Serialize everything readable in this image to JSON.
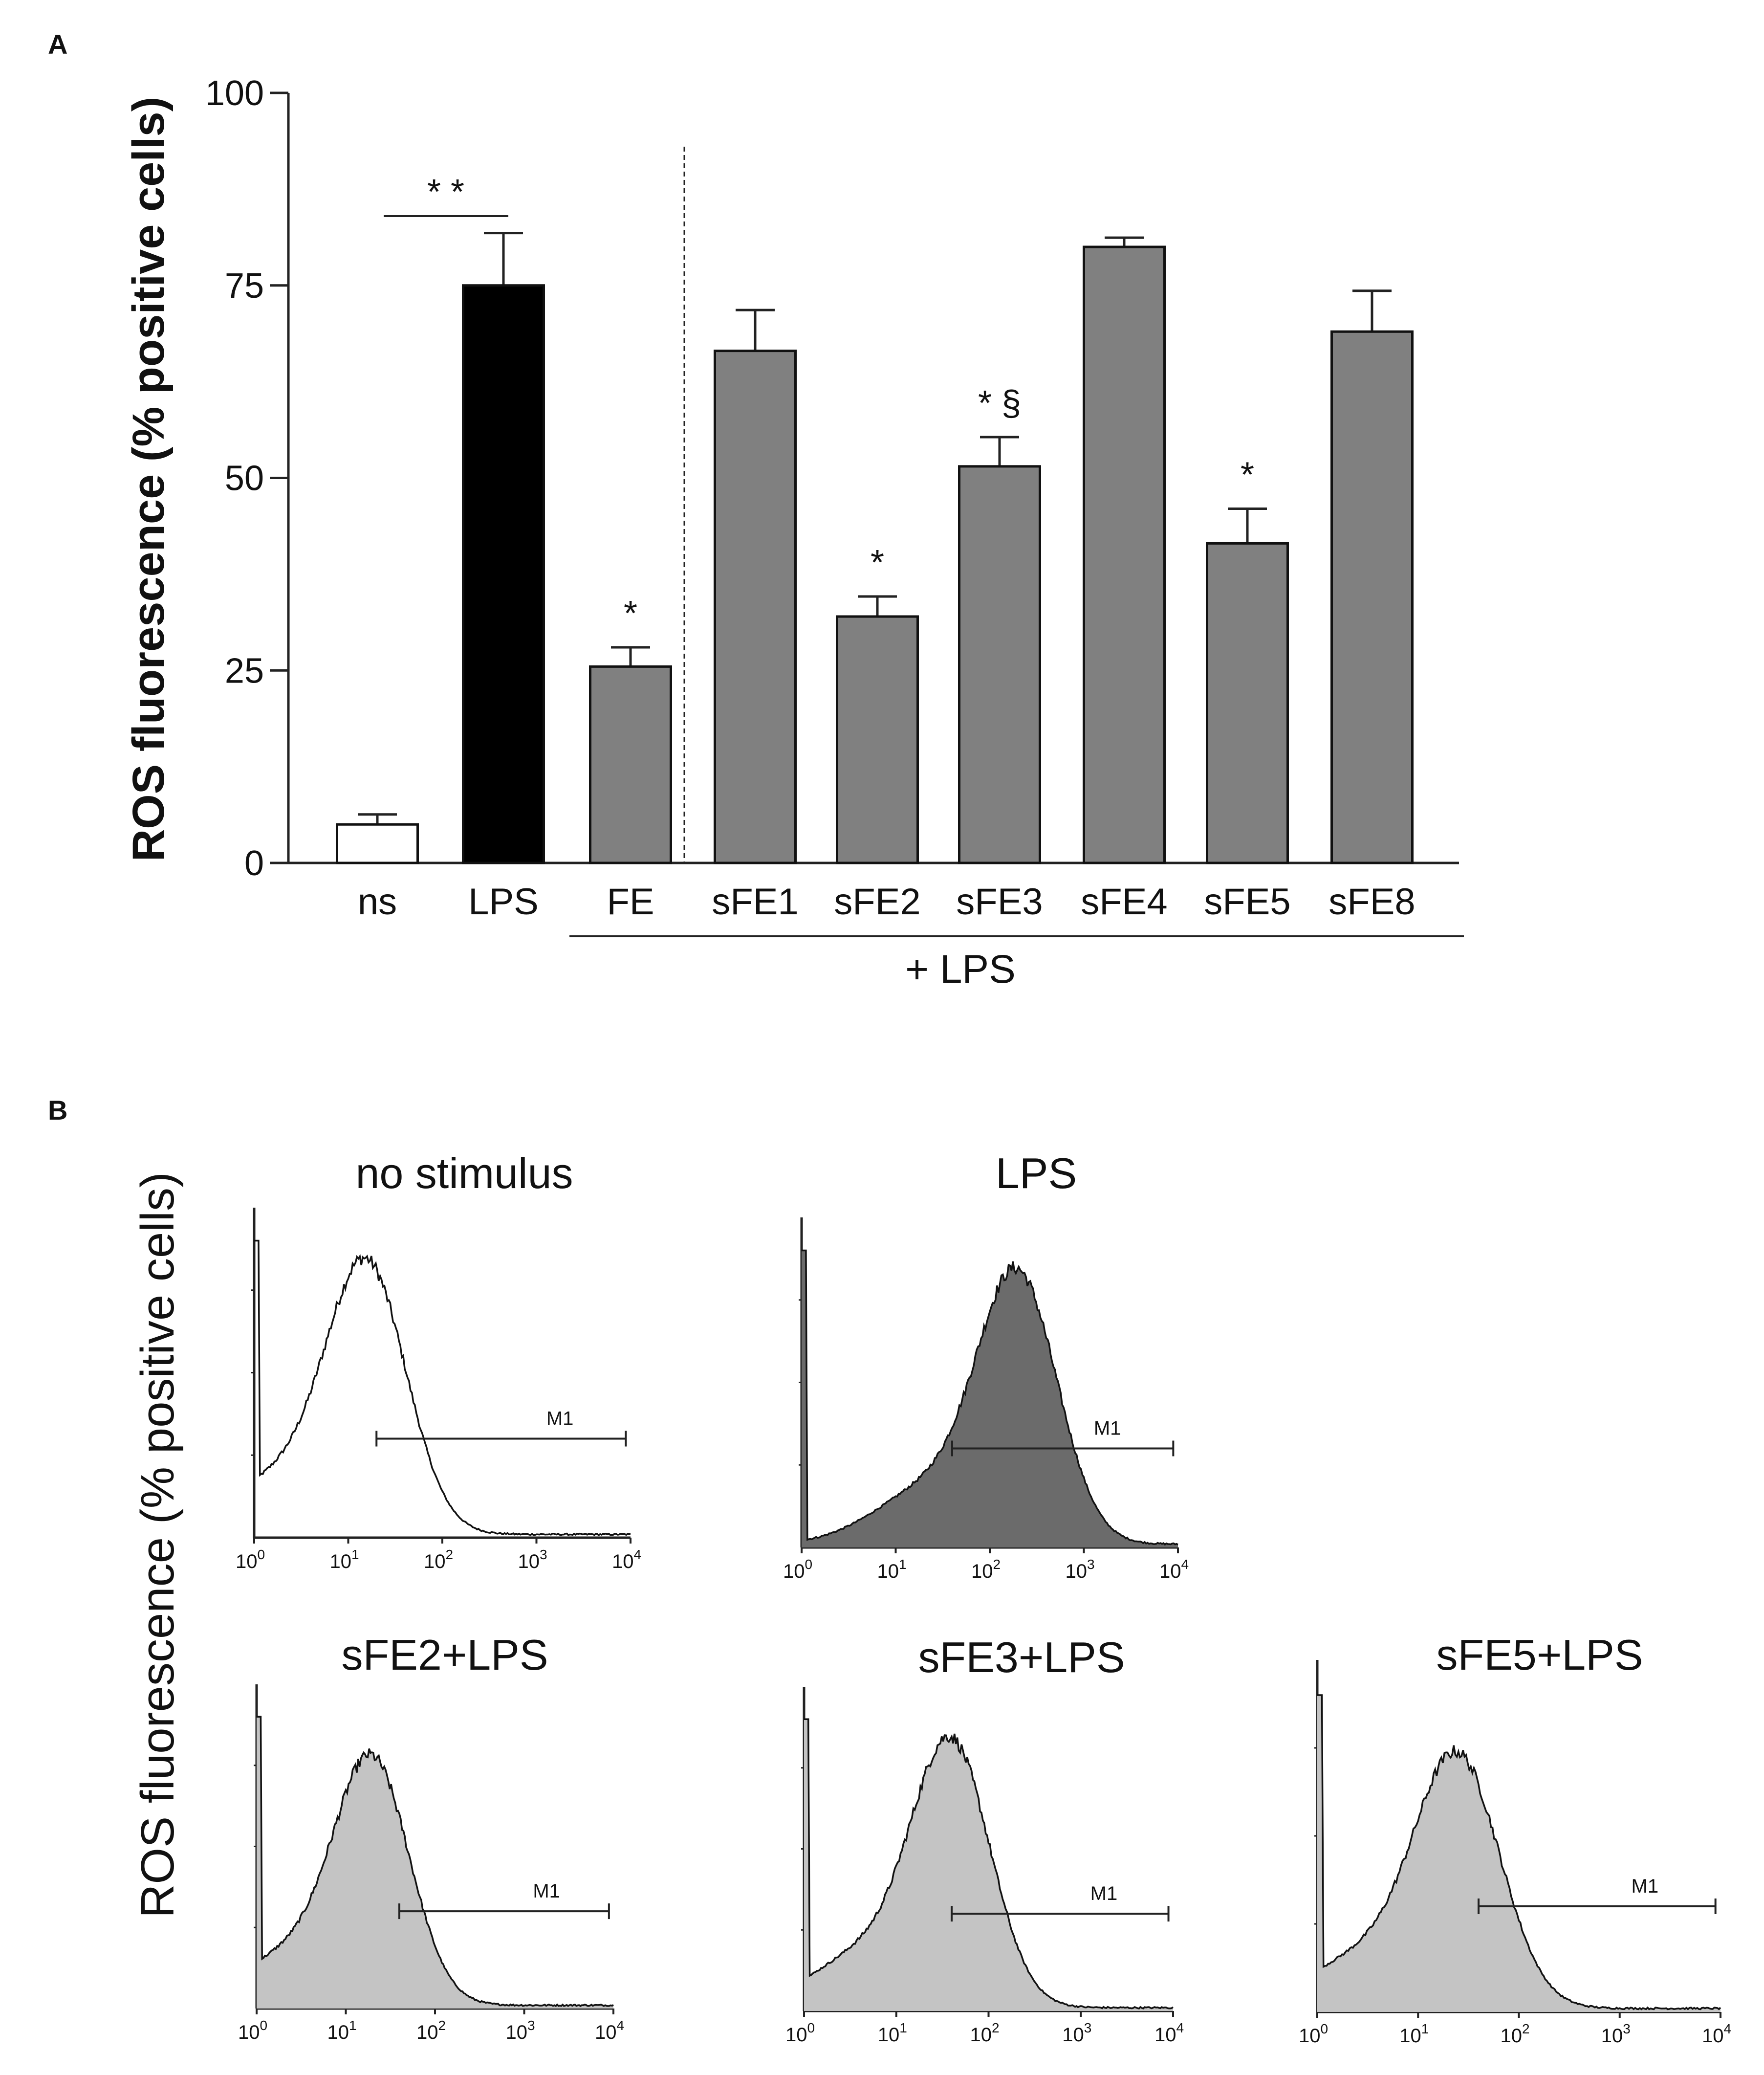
{
  "panel_a": {
    "label": "A"
  },
  "panel_b": {
    "label": "B",
    "ylabel": "ROS fluorescence (% positive cells)"
  },
  "colors": {
    "ns": "#ffffff",
    "lps": "#000000",
    "treated": "#808080",
    "histogram_dark": "#6b6b6b",
    "histogram_light": "#c4c4c4"
  },
  "chart_data": [
    {
      "type": "bar",
      "title": "",
      "ylabel": "ROS fluorescence (% positive cells)",
      "xlabel": "",
      "ylim": [
        0,
        100
      ],
      "yticks": [
        "0",
        "25",
        "50",
        "75",
        "100"
      ],
      "categories": [
        "ns",
        "LPS",
        "FE",
        "sFE1",
        "sFE2",
        "sFE3",
        "sFE4",
        "sFE5",
        "sFE8"
      ],
      "values": [
        5,
        75,
        25.5,
        66.5,
        32,
        51.5,
        80,
        41.5,
        69
      ],
      "errors": [
        1.3,
        6.8,
        2.5,
        5.3,
        2.6,
        3.8,
        1.2,
        4.5,
        5.3
      ],
      "fill_keys": [
        "ns",
        "lps",
        "treated",
        "treated",
        "treated",
        "treated",
        "treated",
        "treated",
        "treated"
      ],
      "sig_marks": [
        "",
        "",
        "*",
        "",
        "*",
        "* §",
        "",
        "*",
        ""
      ],
      "bracket_label": "* *",
      "group_label": "+ LPS"
    },
    {
      "type": "histogram",
      "xlabel_scale": "log",
      "x_ticks": [
        "10",
        "10",
        "10",
        "10",
        "10"
      ],
      "x_tick_exponents": [
        "0",
        "1",
        "2",
        "3",
        "4"
      ],
      "marker_label": "M1",
      "panels": [
        {
          "title": "no stimulus",
          "filled": false,
          "peak_log": 1.2,
          "peak_height": 0.78,
          "marker_from_log": 1.3
        },
        {
          "title": "LPS",
          "filled": true,
          "shade": "dark",
          "peak_log": 2.3,
          "peak_height": 0.78,
          "marker_from_log": 1.6
        },
        {
          "title": "sFE2+LPS",
          "filled": true,
          "shade": "light",
          "peak_log": 1.3,
          "peak_height": 0.72,
          "marker_from_log": 1.6
        },
        {
          "title": "sFE3+LPS",
          "filled": true,
          "shade": "light",
          "peak_log": 1.6,
          "peak_height": 0.78,
          "marker_from_log": 1.6
        },
        {
          "title": "sFE5+LPS",
          "filled": true,
          "shade": "light",
          "peak_log": 1.4,
          "peak_height": 0.68,
          "marker_from_log": 1.6
        }
      ]
    }
  ]
}
